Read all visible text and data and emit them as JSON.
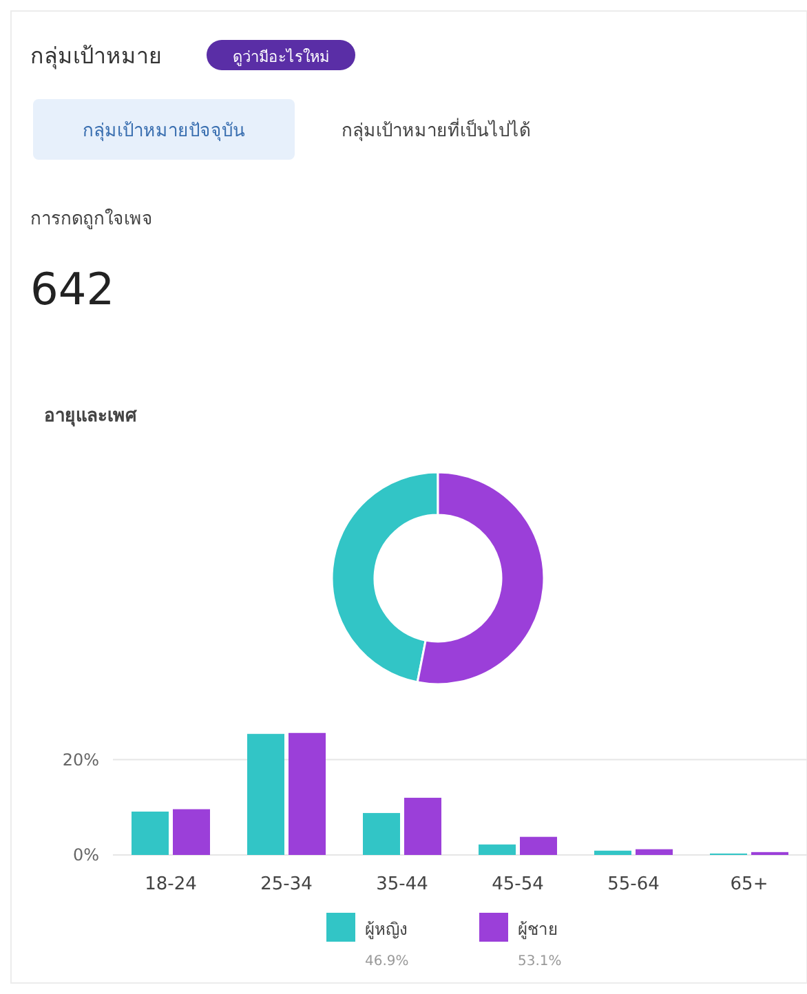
{
  "chart_data": [
    {
      "type": "other",
      "title": "กลุ่มเป้าหมาย",
      "annotations": [
        "ดูว่ามีอะไรใหม่",
        "กลุ่มเป้าหมายปัจจุบัน",
        "กลุ่มเป้าหมายที่เป็นไปได้",
        "การกดถูกใจเพจ",
        "642"
      ]
    },
    {
      "type": "donut",
      "title": "อายุและเพศ",
      "categories": [
        "ผู้หญิง",
        "ผู้ชาย"
      ],
      "values": [
        46.9,
        53.1
      ],
      "colors": [
        "#32c5c6",
        "#9b3fd9"
      ],
      "value_labels": [
        "46.9%",
        "53.1%"
      ],
      "legend": "bottom"
    },
    {
      "type": "bar",
      "categories": [
        "18-24",
        "25-34",
        "35-44",
        "45-54",
        "55-64",
        "65+"
      ],
      "series": [
        {
          "color": "#32c5c6",
          "values": [
            9.1,
            25.4,
            8.8,
            2.2,
            0.9,
            0.3
          ]
        },
        {
          "color": "#9b3fd9",
          "values": [
            9.6,
            25.6,
            12.0,
            3.8,
            1.2,
            0.6
          ]
        }
      ],
      "ylim": [
        0,
        26
      ],
      "yticks": [
        {
          "value": 0,
          "label": "0%"
        },
        {
          "value": 20,
          "label": "20%"
        }
      ],
      "grid": "y"
    }
  ]
}
